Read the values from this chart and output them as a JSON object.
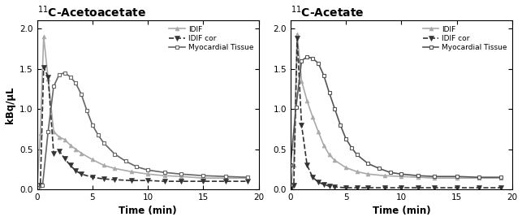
{
  "title_left": "$^{11}$C-Acetoacetate",
  "title_right": "$^{11}$C-Acetate",
  "ylabel": "kBq/μL",
  "xlabel": "Time (min)",
  "xlim": [
    0,
    20
  ],
  "ylim": [
    0,
    2.1
  ],
  "yticks": [
    0.0,
    0.5,
    1.0,
    1.5,
    2.0
  ],
  "xticks": [
    0,
    5,
    10,
    15,
    20
  ],
  "left": {
    "IDIF": {
      "t": [
        0,
        0.3,
        0.6,
        1.0,
        1.5,
        2.0,
        2.5,
        3.0,
        3.5,
        4.0,
        5.0,
        6.0,
        7.0,
        8.5,
        10.0,
        11.5,
        13.0,
        15.0,
        17.0,
        19.0
      ],
      "v": [
        0.0,
        0.7,
        1.9,
        1.38,
        0.72,
        0.65,
        0.62,
        0.55,
        0.5,
        0.45,
        0.37,
        0.3,
        0.26,
        0.22,
        0.19,
        0.17,
        0.16,
        0.14,
        0.14,
        0.14
      ],
      "color": "#aaaaaa",
      "linestyle": "-",
      "marker": "^",
      "markersize": 3.5,
      "linewidth": 1.2,
      "markevery": 3
    },
    "IDIF_cor": {
      "t": [
        0,
        0.3,
        0.6,
        1.0,
        1.5,
        2.0,
        2.5,
        3.0,
        3.5,
        4.0,
        5.0,
        6.0,
        7.0,
        8.5,
        10.0,
        11.5,
        13.0,
        15.0,
        17.0,
        19.0
      ],
      "v": [
        0.0,
        0.05,
        1.52,
        1.4,
        0.45,
        0.48,
        0.38,
        0.3,
        0.23,
        0.19,
        0.15,
        0.13,
        0.12,
        0.11,
        0.11,
        0.1,
        0.1,
        0.1,
        0.1,
        0.1
      ],
      "color": "#333333",
      "linestyle": "--",
      "marker": "v",
      "markersize": 4.5,
      "linewidth": 1.2,
      "markevery": 3
    },
    "Myocardial": {
      "t": [
        0,
        0.5,
        1.0,
        1.5,
        2.0,
        2.5,
        3.0,
        3.5,
        4.0,
        4.5,
        5.0,
        5.5,
        6.0,
        7.0,
        8.0,
        9.0,
        10.0,
        11.5,
        13.0,
        15.0,
        17.0,
        19.0
      ],
      "v": [
        0.02,
        0.05,
        0.72,
        1.28,
        1.43,
        1.45,
        1.4,
        1.32,
        1.18,
        0.98,
        0.8,
        0.68,
        0.58,
        0.44,
        0.35,
        0.28,
        0.24,
        0.21,
        0.19,
        0.17,
        0.16,
        0.15
      ],
      "color": "#666666",
      "linestyle": "-",
      "marker": "s",
      "markersize": 3.5,
      "linewidth": 1.2,
      "markevery": 2
    }
  },
  "right": {
    "IDIF": {
      "t": [
        0,
        0.3,
        0.6,
        1.0,
        1.5,
        2.0,
        2.5,
        3.0,
        3.5,
        4.0,
        5.0,
        6.0,
        7.0,
        8.5,
        10.0,
        11.5,
        13.0,
        15.0,
        17.0,
        19.0
      ],
      "v": [
        0.0,
        0.3,
        1.93,
        1.35,
        1.1,
        0.9,
        0.72,
        0.55,
        0.43,
        0.36,
        0.27,
        0.22,
        0.19,
        0.17,
        0.16,
        0.15,
        0.14,
        0.14,
        0.14,
        0.14
      ],
      "color": "#aaaaaa",
      "linestyle": "-",
      "marker": "^",
      "markersize": 3.5,
      "linewidth": 1.2,
      "markevery": 3
    },
    "IDIF_cor": {
      "t": [
        0,
        0.3,
        0.6,
        1.0,
        1.5,
        2.0,
        2.5,
        3.0,
        3.5,
        4.0,
        5.0,
        6.0,
        7.0,
        8.5,
        10.0,
        11.5,
        13.0,
        15.0,
        17.0,
        19.0
      ],
      "v": [
        0.0,
        0.05,
        1.88,
        0.8,
        0.3,
        0.15,
        0.09,
        0.06,
        0.04,
        0.03,
        0.02,
        0.02,
        0.02,
        0.02,
        0.02,
        0.02,
        0.02,
        0.02,
        0.02,
        0.02
      ],
      "color": "#333333",
      "linestyle": "--",
      "marker": "v",
      "markersize": 4.5,
      "linewidth": 1.2,
      "markevery": 3
    },
    "Myocardial": {
      "t": [
        0,
        0.5,
        1.0,
        1.5,
        2.0,
        2.5,
        3.0,
        3.5,
        4.0,
        4.5,
        5.0,
        5.5,
        6.0,
        7.0,
        8.0,
        9.0,
        10.0,
        11.5,
        13.0,
        15.0,
        17.0,
        19.0
      ],
      "v": [
        0.3,
        1.02,
        1.6,
        1.65,
        1.63,
        1.57,
        1.42,
        1.2,
        1.0,
        0.8,
        0.63,
        0.52,
        0.43,
        0.32,
        0.26,
        0.21,
        0.19,
        0.17,
        0.16,
        0.16,
        0.15,
        0.15
      ],
      "color": "#555555",
      "linestyle": "-",
      "marker": "s",
      "markersize": 3.5,
      "linewidth": 1.2,
      "markevery": 2
    }
  },
  "legend_labels": [
    "IDIF",
    "IDIF cor",
    "Myocardial Tissue"
  ]
}
